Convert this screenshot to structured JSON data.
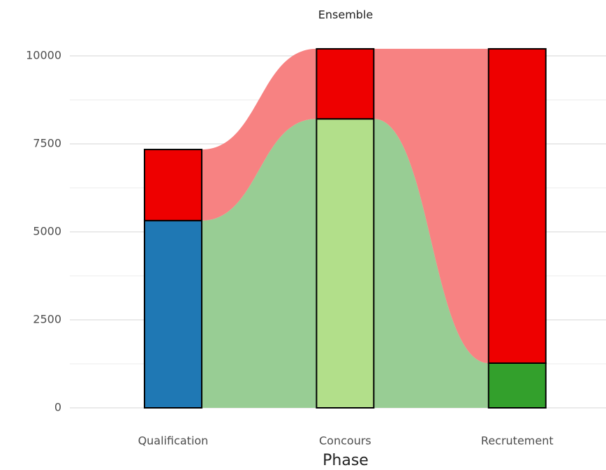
{
  "chart_data": {
    "type": "alluvial",
    "title": "Ensemble",
    "x_label": "Phase",
    "categories": [
      "Qualification",
      "Concours",
      "Recrutement"
    ],
    "series": [
      {
        "colors": [
          "#1f78b4",
          "#b2df8a",
          "#33a02c"
        ],
        "values": [
          5320,
          8210,
          1270
        ],
        "flow_color": "#98cd94"
      },
      {
        "colors": [
          "#ee0000",
          "#ee0000",
          "#ee0000"
        ],
        "values": [
          2020,
          1990,
          8930
        ],
        "flow_color": "#f78282"
      }
    ],
    "ylim": [
      0,
      10000
    ],
    "yticks": [
      0,
      2500,
      5000,
      7500,
      10000
    ],
    "minor_yticks": [
      1250,
      3750,
      6250,
      8750
    ],
    "grid": true
  }
}
